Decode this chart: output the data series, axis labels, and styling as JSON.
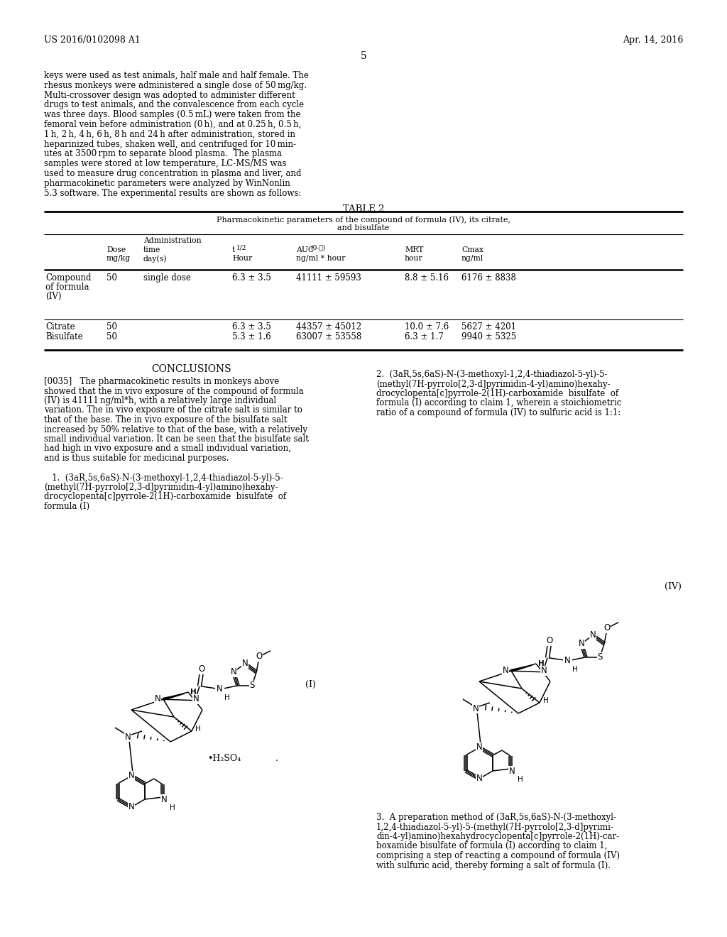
{
  "bg_color": "#ffffff",
  "header_left": "US 2016/0102098 A1",
  "header_right": "Apr. 14, 2016",
  "page_num": "5",
  "body_lines": [
    "keys were used as test animals, half male and half female. The",
    "rhesus monkeys were administered a single dose of 50 mg/kg.",
    "Multi-crossover design was adopted to administer different",
    "drugs to test animals, and the convalescence from each cycle",
    "was three days. Blood samples (0.5 mL) were taken from the",
    "femoral vein before administration (0 h), and at 0.25 h, 0.5 h,",
    "1 h, 2 h, 4 h, 6 h, 8 h and 24 h after administration, stored in",
    "heparinized tubes, shaken well, and centrifuged for 10 min-",
    "utes at 3500 rpm to separate blood plasma.  The plasma",
    "samples were stored at low temperature, LC-MS/MS was",
    "used to measure drug concentration in plasma and liver, and",
    "pharmacokinetic parameters were analyzed by WinNonlin",
    "5.3 software. The experimental results are shown as follows:"
  ],
  "table_title": "TABLE 2",
  "conc_title": "CONCLUSIONS",
  "conc_lines": [
    "[0035]   The pharmacokinetic results in monkeys above",
    "showed that the in vivo exposure of the compound of formula",
    "(IV) is 41111 ng/ml*h, with a relatively large individual",
    "variation. The in vivo exposure of the citrate salt is similar to",
    "that of the base. The in vivo exposure of the bisulfate salt",
    "increased by 50% relative to that of the base, with a relatively",
    "small individual variation. It can be seen that the bisulfate salt",
    "had high in vivo exposure and a small individual variation,",
    "and is thus suitable for medicinal purposes."
  ],
  "claim1_lines": [
    "   1.  (3aR,5s,6aS)-N-(3-methoxyl-1,2,4-thiadiazol-5-yl)-5-",
    "(methyl(7H-pyrrolo[2,3-d]pyrimidin-4-yl)amino)hexahy-",
    "drocyclopenta[c]pyrrole-2(1H)-carboxamide  bisulfate  of",
    "formula (I)"
  ],
  "claim2_lines": [
    "2.  (3aR,5s,6aS)-N-(3-methoxyl-1,2,4-thiadiazol-5-yl)-5-",
    "(methyl(7H-pyrrolo[2,3-d]pyrimidin-4-yl)amino)hexahy-",
    "drocyclopenta[c]pyrrole-2(1H)-carboxamide  bisulfate  of",
    "formula (I) according to claim 1, wherein a stoichiometric",
    "ratio of a compound of formula (IV) to sulfuric acid is 1:1:"
  ],
  "claim3_lines": [
    "3.  A preparation method of (3aR,5s,6aS)-N-(3-methoxyl-",
    "1,2,4-thiadiazol-5-yl)-5-(methyl(7H-pyrrolo[2,3-d]pyrimi-",
    "din-4-yl)amino)hexahydrocyclopenta[c]pyrrole-2(1H)-car-",
    "boxamide bisulfate of formula (I) according to claim 1,",
    "comprising a step of reacting a compound of formula (IV)",
    "with sulfuric acid, thereby forming a salt of formula (I)."
  ],
  "table_subtitle1": "Pharmacokinetic parameters of the compound of formula (IV), its citrate,",
  "table_subtitle2": "and bisulfate",
  "col_header_admin": "Administration",
  "col_header_dose": "Dose",
  "col_header_mg": "mg/kg",
  "col_header_time": "time",
  "col_header_days": "day(s)",
  "col_header_t12": "t1/2",
  "col_header_t12_hour": "Hour",
  "col_header_auc": "AUC(0-t)",
  "col_header_auc_unit": "ng/ml * hour",
  "col_header_mrt": "MRT",
  "col_header_mrt_hour": "hour",
  "col_header_cmax": "Cmax",
  "col_header_cmax_unit": "ng/ml",
  "row1_name": [
    "Compound",
    "of formula",
    "(IV)"
  ],
  "row1_dose": "50",
  "row1_admin": "single dose",
  "row1_t12": "6.3 ± 3.5",
  "row1_auc": "41111 ± 59593",
  "row1_mrt": "8.8 ± 5.16",
  "row1_cmax": "6176 ± 8838",
  "row2_name": "Citrate",
  "row2_dose": "50",
  "row2_t12": "6.3 ± 3.5",
  "row2_auc": "44357 ± 45012",
  "row2_mrt": "10.0 ± 7.6",
  "row2_cmax": "5627 ± 4201",
  "row3_name": "Bisulfate",
  "row3_dose": "50",
  "row3_t12": "5.3 ± 1.6",
  "row3_auc": "63007 ± 53558",
  "row3_mrt": "6.3 ± 1.7",
  "row3_cmax": "9940 ± 5325",
  "formula_I_label": "(I)",
  "formula_IV_label": "(IV)",
  "hsulfate": "•H₂SO₄"
}
